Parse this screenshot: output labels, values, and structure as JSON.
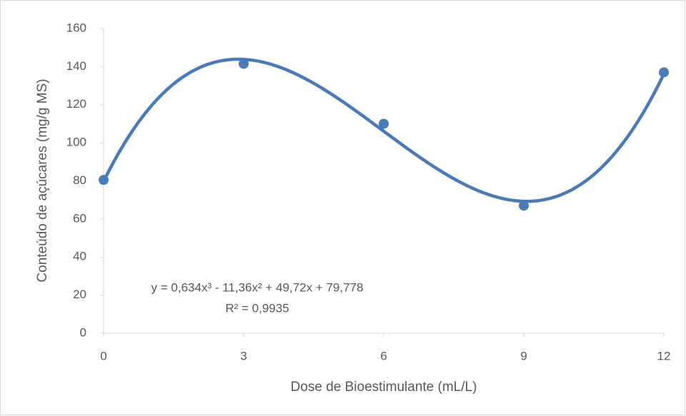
{
  "chart_data": {
    "type": "scatter",
    "x_label": "Dose de Bioestimulante (mL/L)",
    "y_label": "Conteúdo de açúcares (mg/g MS)",
    "x": [
      0,
      3,
      6,
      9,
      12
    ],
    "series": [
      {
        "color": "#4a7ab8",
        "values": [
          80.5,
          141.5,
          110,
          67,
          137
        ]
      }
    ],
    "xlim": [
      0,
      12
    ],
    "xticks": [
      0,
      3,
      6,
      9,
      12
    ],
    "ylim": [
      0,
      160
    ],
    "yticks": [
      0,
      20,
      40,
      60,
      80,
      100,
      120,
      140,
      160
    ],
    "grid": false,
    "trendline": {
      "type": "polynomial",
      "coefficients": [
        79.778,
        49.72,
        -11.36,
        0.634
      ],
      "equation": "y = 0,634x³ - 11,36x² + 49,72x + 79,778",
      "r2_label": "R² = 0,9935"
    }
  }
}
